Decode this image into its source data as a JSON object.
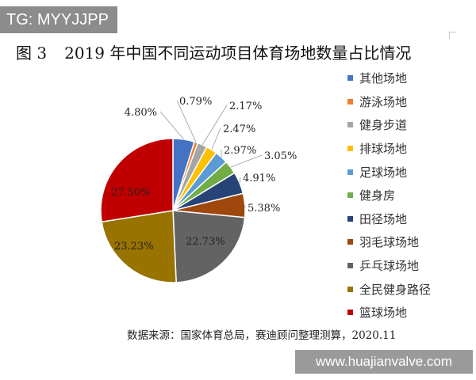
{
  "watermark_top": "TG: MYYJJPP",
  "watermark_bottom": "www.huajianvalve.com",
  "title": {
    "figure_label": "图 3",
    "text": "2019 年中国不同运动项目体育场地数量占比情况"
  },
  "source_note": "数据来源：国家体育总局，赛迪顾问整理测算，2020.11",
  "chart_data": {
    "type": "pie",
    "title": "2019 年中国不同运动项目体育场地数量占比情况",
    "unit": "%",
    "slices": [
      {
        "label": "其他场地",
        "value": 4.8,
        "text": "4.80%",
        "color": "#4472c4"
      },
      {
        "label": "游泳场地",
        "value": 0.79,
        "text": "0.79%",
        "color": "#ed7d31"
      },
      {
        "label": "健身步道",
        "value": 2.17,
        "text": "2.17%",
        "color": "#a5a5a5"
      },
      {
        "label": "排球场地",
        "value": 2.47,
        "text": "2.47%",
        "color": "#ffc000"
      },
      {
        "label": "足球场地",
        "value": 2.97,
        "text": "2.97%",
        "color": "#5b9bd5"
      },
      {
        "label": "健身房",
        "value": 3.05,
        "text": "3.05%",
        "color": "#70ad47"
      },
      {
        "label": "田径场地",
        "value": 4.91,
        "text": "4.91%",
        "color": "#264478"
      },
      {
        "label": "羽毛球场地",
        "value": 5.38,
        "text": "5.38%",
        "color": "#9e480e"
      },
      {
        "label": "乒乓球场地",
        "value": 22.73,
        "text": "22.73%",
        "color": "#636363"
      },
      {
        "label": "全民健身路径",
        "value": 23.23,
        "text": "23.23%",
        "color": "#997300"
      },
      {
        "label": "篮球场地",
        "value": 27.5,
        "text": "27.50%",
        "color": "#c00000"
      }
    ],
    "legend_position": "right"
  }
}
